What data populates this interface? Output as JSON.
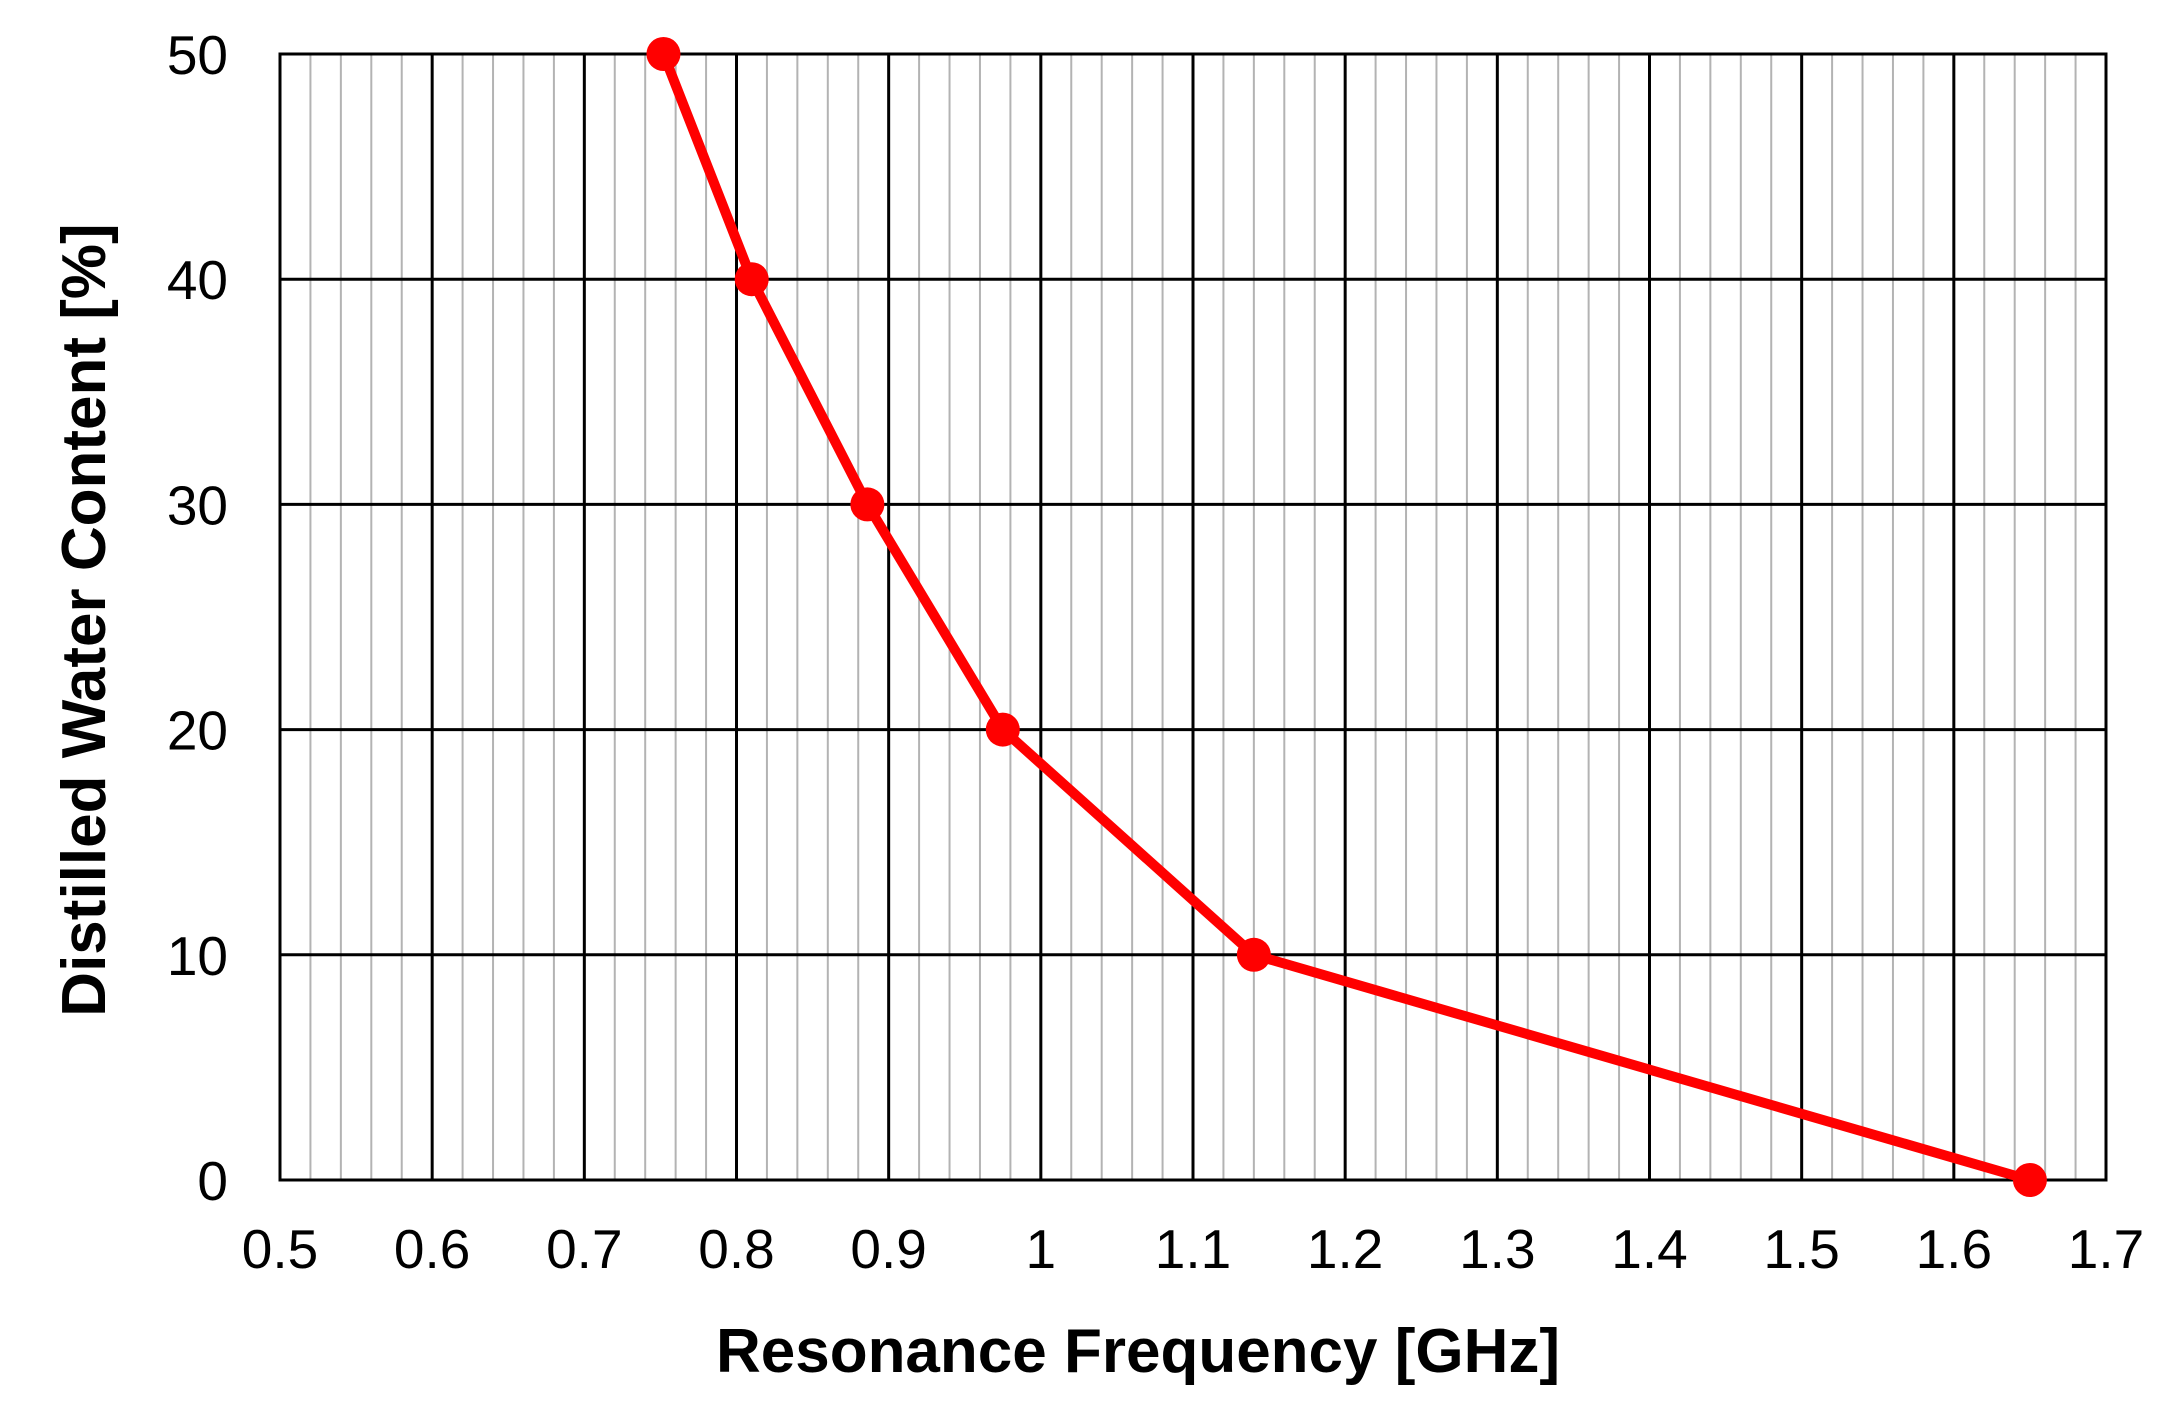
{
  "chart_data": {
    "type": "line",
    "title": "",
    "xlabel": "Resonance Frequency [GHz]",
    "ylabel": "Distilled Water Content [%]",
    "xlim": [
      0.5,
      1.7
    ],
    "ylim": [
      0,
      50
    ],
    "x_ticks": [
      "0.5",
      "0.6",
      "0.7",
      "0.8",
      "0.9",
      "1",
      "1.1",
      "1.2",
      "1.3",
      "1.4",
      "1.5",
      "1.6",
      "1.7"
    ],
    "y_ticks": [
      "0",
      "10",
      "20",
      "30",
      "40",
      "50"
    ],
    "x_minor_step": 0.02,
    "grid": true,
    "legend": "none",
    "series": [
      {
        "color": "#ff0000",
        "marker": "circle",
        "x": [
          0.752,
          0.81,
          0.886,
          0.975,
          1.14,
          1.65
        ],
        "y": [
          50,
          40,
          30,
          20,
          10,
          0
        ]
      }
    ]
  }
}
